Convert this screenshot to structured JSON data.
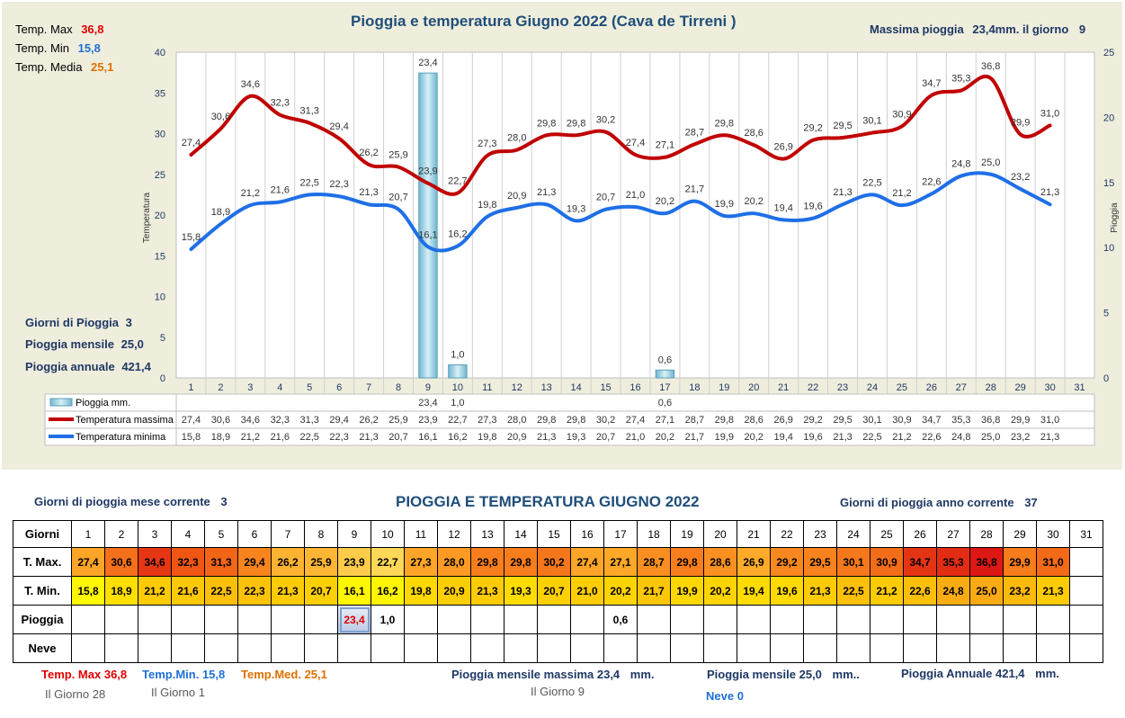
{
  "chart": {
    "title": "Pioggia e temperatura Giugno 2022 (Cava de Tirreni )",
    "y_left_label": "Temperatura",
    "y_right_label": "Pioggia",
    "max_rain_note": {
      "label": "Massima pioggia",
      "value": "23,4mm. il giorno",
      "day": "9"
    },
    "stats": [
      {
        "label": "Temp. Max",
        "value": "36,8",
        "color": "#e00000"
      },
      {
        "label": "Temp. Min",
        "value": "15,8",
        "color": "#1f6fd6"
      },
      {
        "label": "Temp. Media",
        "value": "25,1",
        "color": "#e07000"
      }
    ],
    "rain_info": [
      {
        "label": "Giorni di Pioggia",
        "value": "3"
      },
      {
        "label": "Pioggia mensile",
        "value": "25,0"
      },
      {
        "label": "Pioggia annuale",
        "value": "421,4"
      }
    ],
    "legend_table": [
      {
        "label": "Pioggia mm.",
        "color": "#8fcbe0"
      },
      {
        "label": "Temperatura massima",
        "color": "#c00000"
      },
      {
        "label": "Temperatura minima",
        "color": "#1f6fe6"
      }
    ]
  },
  "chart_data": {
    "type": "line",
    "title": "Pioggia e temperatura Giugno 2022 (Cava de Tirreni )",
    "ylabel": "Temperatura",
    "y2label": "Pioggia",
    "ylim": [
      0,
      40
    ],
    "y2lim": [
      0,
      25
    ],
    "yticks": [
      "0",
      "5",
      "10",
      "15",
      "20",
      "25",
      "30",
      "35",
      "40"
    ],
    "y2ticks": [
      "0",
      "5",
      "10",
      "15",
      "20",
      "25"
    ],
    "x": [
      "1",
      "2",
      "3",
      "4",
      "5",
      "6",
      "7",
      "8",
      "9",
      "10",
      "11",
      "12",
      "13",
      "14",
      "15",
      "16",
      "17",
      "18",
      "19",
      "20",
      "21",
      "22",
      "23",
      "24",
      "25",
      "26",
      "27",
      "28",
      "29",
      "30",
      "31"
    ],
    "series": [
      {
        "name": "Temperatura massima",
        "color": "#c00000",
        "values": [
          27.4,
          30.6,
          34.6,
          32.3,
          31.3,
          29.4,
          26.2,
          25.9,
          23.9,
          22.7,
          27.3,
          28.0,
          29.8,
          29.8,
          30.2,
          27.4,
          27.1,
          28.7,
          29.8,
          28.6,
          26.9,
          29.2,
          29.5,
          30.1,
          30.9,
          34.7,
          35.3,
          36.8,
          29.9,
          31.0,
          null
        ]
      },
      {
        "name": "Temperatura minima",
        "color": "#1f6fe6",
        "values": [
          15.8,
          18.9,
          21.2,
          21.6,
          22.5,
          22.3,
          21.3,
          20.7,
          16.1,
          16.2,
          19.8,
          20.9,
          21.3,
          19.3,
          20.7,
          21.0,
          20.2,
          21.7,
          19.9,
          20.2,
          19.4,
          19.6,
          21.3,
          22.5,
          21.2,
          22.6,
          24.8,
          25.0,
          23.2,
          21.3,
          null
        ]
      },
      {
        "name": "Pioggia mm.",
        "type": "bar",
        "axis": "right",
        "values": [
          null,
          null,
          null,
          null,
          null,
          null,
          null,
          null,
          23.4,
          1.0,
          null,
          null,
          null,
          null,
          null,
          null,
          0.6,
          null,
          null,
          null,
          null,
          null,
          null,
          null,
          null,
          null,
          null,
          null,
          null,
          null,
          null
        ]
      }
    ],
    "max_labels": [
      "27,4",
      "30,6",
      "34,6",
      "32,3",
      "31,3",
      "29,4",
      "26,2",
      "25,9",
      "23,9",
      "22,7",
      "27,3",
      "28,0",
      "29,8",
      "29,8",
      "30,2",
      "27,4",
      "27,1",
      "28,7",
      "29,8",
      "28,6",
      "26,9",
      "29,2",
      "29,5",
      "30,1",
      "30,9",
      "34,7",
      "35,3",
      "36,8",
      "29,9",
      "31,0",
      ""
    ],
    "min_labels": [
      "15,8",
      "18,9",
      "21,2",
      "21,6",
      "22,5",
      "22,3",
      "21,3",
      "20,7",
      "16,1",
      "16,2",
      "19,8",
      "20,9",
      "21,3",
      "19,3",
      "20,7",
      "21,0",
      "20,2",
      "21,7",
      "19,9",
      "20,2",
      "19,4",
      "19,6",
      "21,3",
      "22,5",
      "21,2",
      "22,6",
      "24,8",
      "25,0",
      "23,2",
      "21,3",
      ""
    ],
    "rain_labels": [
      "",
      "",
      "",
      "",
      "",
      "",
      "",
      "",
      "23,4",
      "1,0",
      "",
      "",
      "",
      "",
      "",
      "",
      "0,6",
      "",
      "",
      "",
      "",
      "",
      "",
      "",
      "",
      "",
      "",
      "",
      "",
      "",
      ""
    ]
  },
  "table": {
    "title": "PIOGGIA E TEMPERATURA GIUGNO 2022",
    "left_note": {
      "label": "Giorni di pioggia mese corrente",
      "value": "3"
    },
    "right_note": {
      "label": "Giorni di pioggia anno corrente",
      "value": "37"
    },
    "row_labels": [
      "Giorni",
      "T. Max.",
      "T. Min.",
      "Pioggia",
      "Neve"
    ],
    "days": [
      "1",
      "2",
      "3",
      "4",
      "5",
      "6",
      "7",
      "8",
      "9",
      "10",
      "11",
      "12",
      "13",
      "14",
      "15",
      "16",
      "17",
      "18",
      "19",
      "20",
      "21",
      "22",
      "23",
      "24",
      "25",
      "26",
      "27",
      "28",
      "29",
      "30",
      "31"
    ],
    "tmax": [
      "27,4",
      "30,6",
      "34,6",
      "32,3",
      "31,3",
      "29,4",
      "26,2",
      "25,9",
      "23,9",
      "22,7",
      "27,3",
      "28,0",
      "29,8",
      "29,8",
      "30,2",
      "27,4",
      "27,1",
      "28,7",
      "29,8",
      "28,6",
      "26,9",
      "29,2",
      "29,5",
      "30,1",
      "30,9",
      "34,7",
      "35,3",
      "36,8",
      "29,9",
      "31,0",
      ""
    ],
    "tmin": [
      "15,8",
      "18,9",
      "21,2",
      "21,6",
      "22,5",
      "22,3",
      "21,3",
      "20,7",
      "16,1",
      "16,2",
      "19,8",
      "20,9",
      "21,3",
      "19,3",
      "20,7",
      "21,0",
      "20,2",
      "21,7",
      "19,9",
      "20,2",
      "19,4",
      "19,6",
      "21,3",
      "22,5",
      "21,2",
      "22,6",
      "24,8",
      "25,0",
      "23,2",
      "21,3",
      ""
    ],
    "rain": [
      "",
      "",
      "",
      "",
      "",
      "",
      "",
      "",
      "23,4",
      "1,0",
      "",
      "",
      "",
      "",
      "",
      "",
      "0,6",
      "",
      "",
      "",
      "",
      "",
      "",
      "",
      "",
      "",
      "",
      "",
      "",
      "",
      ""
    ],
    "snow": [
      "",
      "",
      "",
      "",
      "",
      "",
      "",
      "",
      "",
      "",
      "",
      "",
      "",
      "",
      "",
      "",
      "",
      "",
      "",
      "",
      "",
      "",
      "",
      "",
      "",
      "",
      "",
      "",
      "",
      "",
      ""
    ]
  },
  "footer": {
    "tmax": {
      "label": "Temp. Max",
      "value": "36,8",
      "day": "Il Giorno  28"
    },
    "tmin": {
      "label": "Temp.Min.",
      "value": "15,8",
      "day": "Il Giorno  1"
    },
    "tmed": {
      "label": "Temp.Med.",
      "value": "25,1"
    },
    "max_monthly_rain": {
      "label": "Pioggia mensile massima",
      "value": "23,4",
      "unit": "mm.",
      "day": "Il Giorno  9"
    },
    "monthly_rain": {
      "label": "Pioggia mensile",
      "value": "25,0",
      "unit": "mm.."
    },
    "annual_rain": {
      "label": "Pioggia Annuale",
      "value": "421,4",
      "unit": "mm."
    },
    "snow": {
      "label": "Neve",
      "value": "0"
    }
  }
}
